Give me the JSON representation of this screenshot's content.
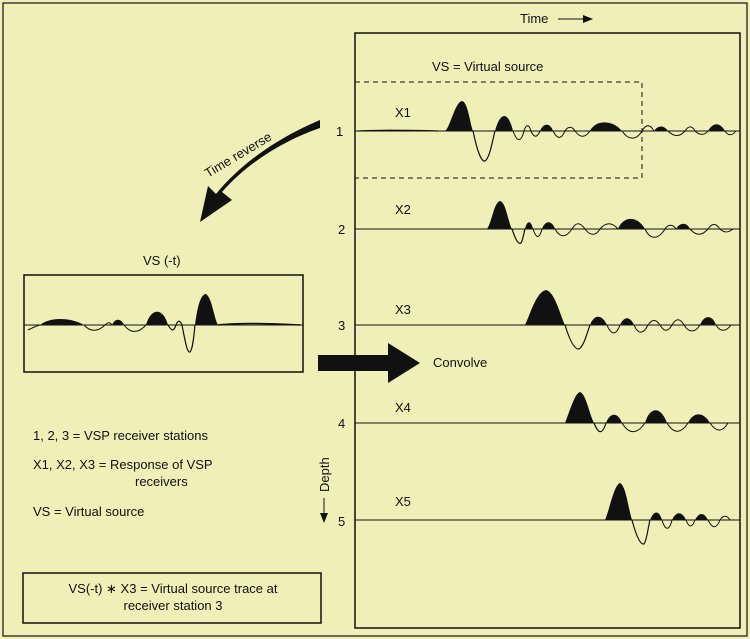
{
  "figure": {
    "time_label": "Time",
    "depth_label": "Depth",
    "time_reverse_label": "Time reverse",
    "convolve_label": "Convolve",
    "vs_box_label": "VS = Virtual source",
    "vs_reversed_label": "VS (-t)"
  },
  "stations": [
    {
      "number": "1",
      "trace": "X1"
    },
    {
      "number": "2",
      "trace": "X2"
    },
    {
      "number": "3",
      "trace": "X3"
    },
    {
      "number": "4",
      "trace": "X4"
    },
    {
      "number": "5",
      "trace": "X5"
    }
  ],
  "legend": {
    "stations": "1, 2, 3 = VSP receiver stations",
    "response_a": "X1, X2, X3 = Response of VSP",
    "response_b": "receivers",
    "vs": "VS = Virtual source"
  },
  "equation": {
    "line1": "VS(-t) ∗ X3 = Virtual source trace at",
    "line2": "receiver station 3"
  },
  "colors": {
    "background": "#eef0b7",
    "ink": "#111111"
  }
}
